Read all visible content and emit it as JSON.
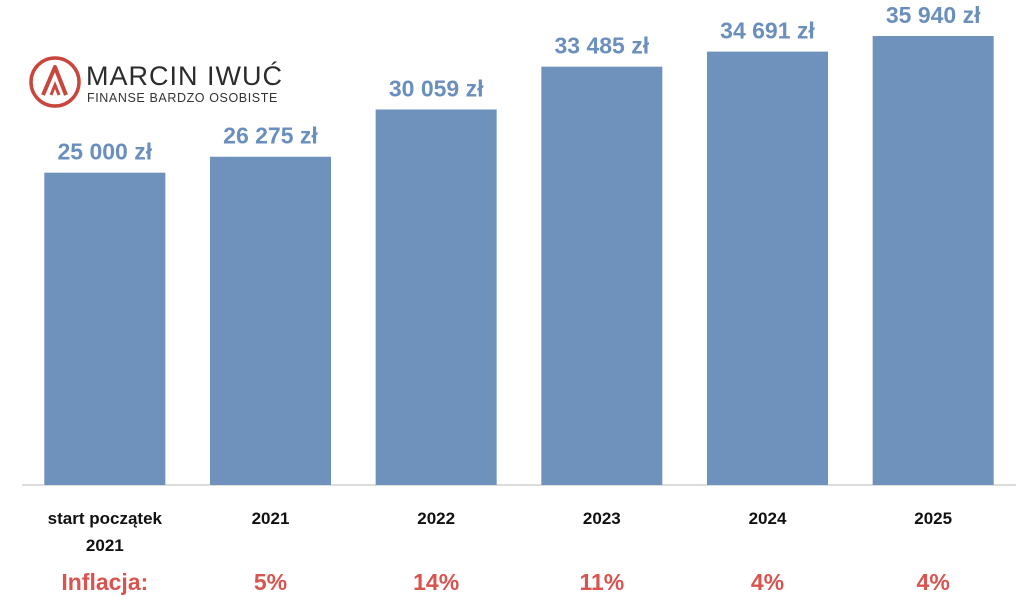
{
  "brand": {
    "name": "MARCIN IWUĆ",
    "tagline": "FINANSE BARDZO OSOBISTE",
    "accent": "#c9463d"
  },
  "chart_data": {
    "type": "bar",
    "title": "",
    "xlabel": "",
    "ylabel": "",
    "ylim": [
      0,
      36500
    ],
    "grid": false,
    "categories": [
      "start początek 2021",
      "2021",
      "2022",
      "2023",
      "2024",
      "2025"
    ],
    "category_lines": [
      [
        "start początek",
        "2021"
      ],
      [
        "2021"
      ],
      [
        "2022"
      ],
      [
        "2023"
      ],
      [
        "2024"
      ],
      [
        "2025"
      ]
    ],
    "values": [
      25000,
      26275,
      30059,
      33485,
      34691,
      35940
    ],
    "value_labels": [
      "25 000 zł",
      "26 275 zł",
      "30 059 zł",
      "33 485 zł",
      "34 691 zł",
      "35 940 zł"
    ],
    "bar_color": "#6f92bd",
    "label_color": "#6b8fbd",
    "inflation": {
      "label": "Inflacja:",
      "values": [
        "5%",
        "14%",
        "11%",
        "4%",
        "4%"
      ],
      "color": "#d9534f"
    }
  }
}
